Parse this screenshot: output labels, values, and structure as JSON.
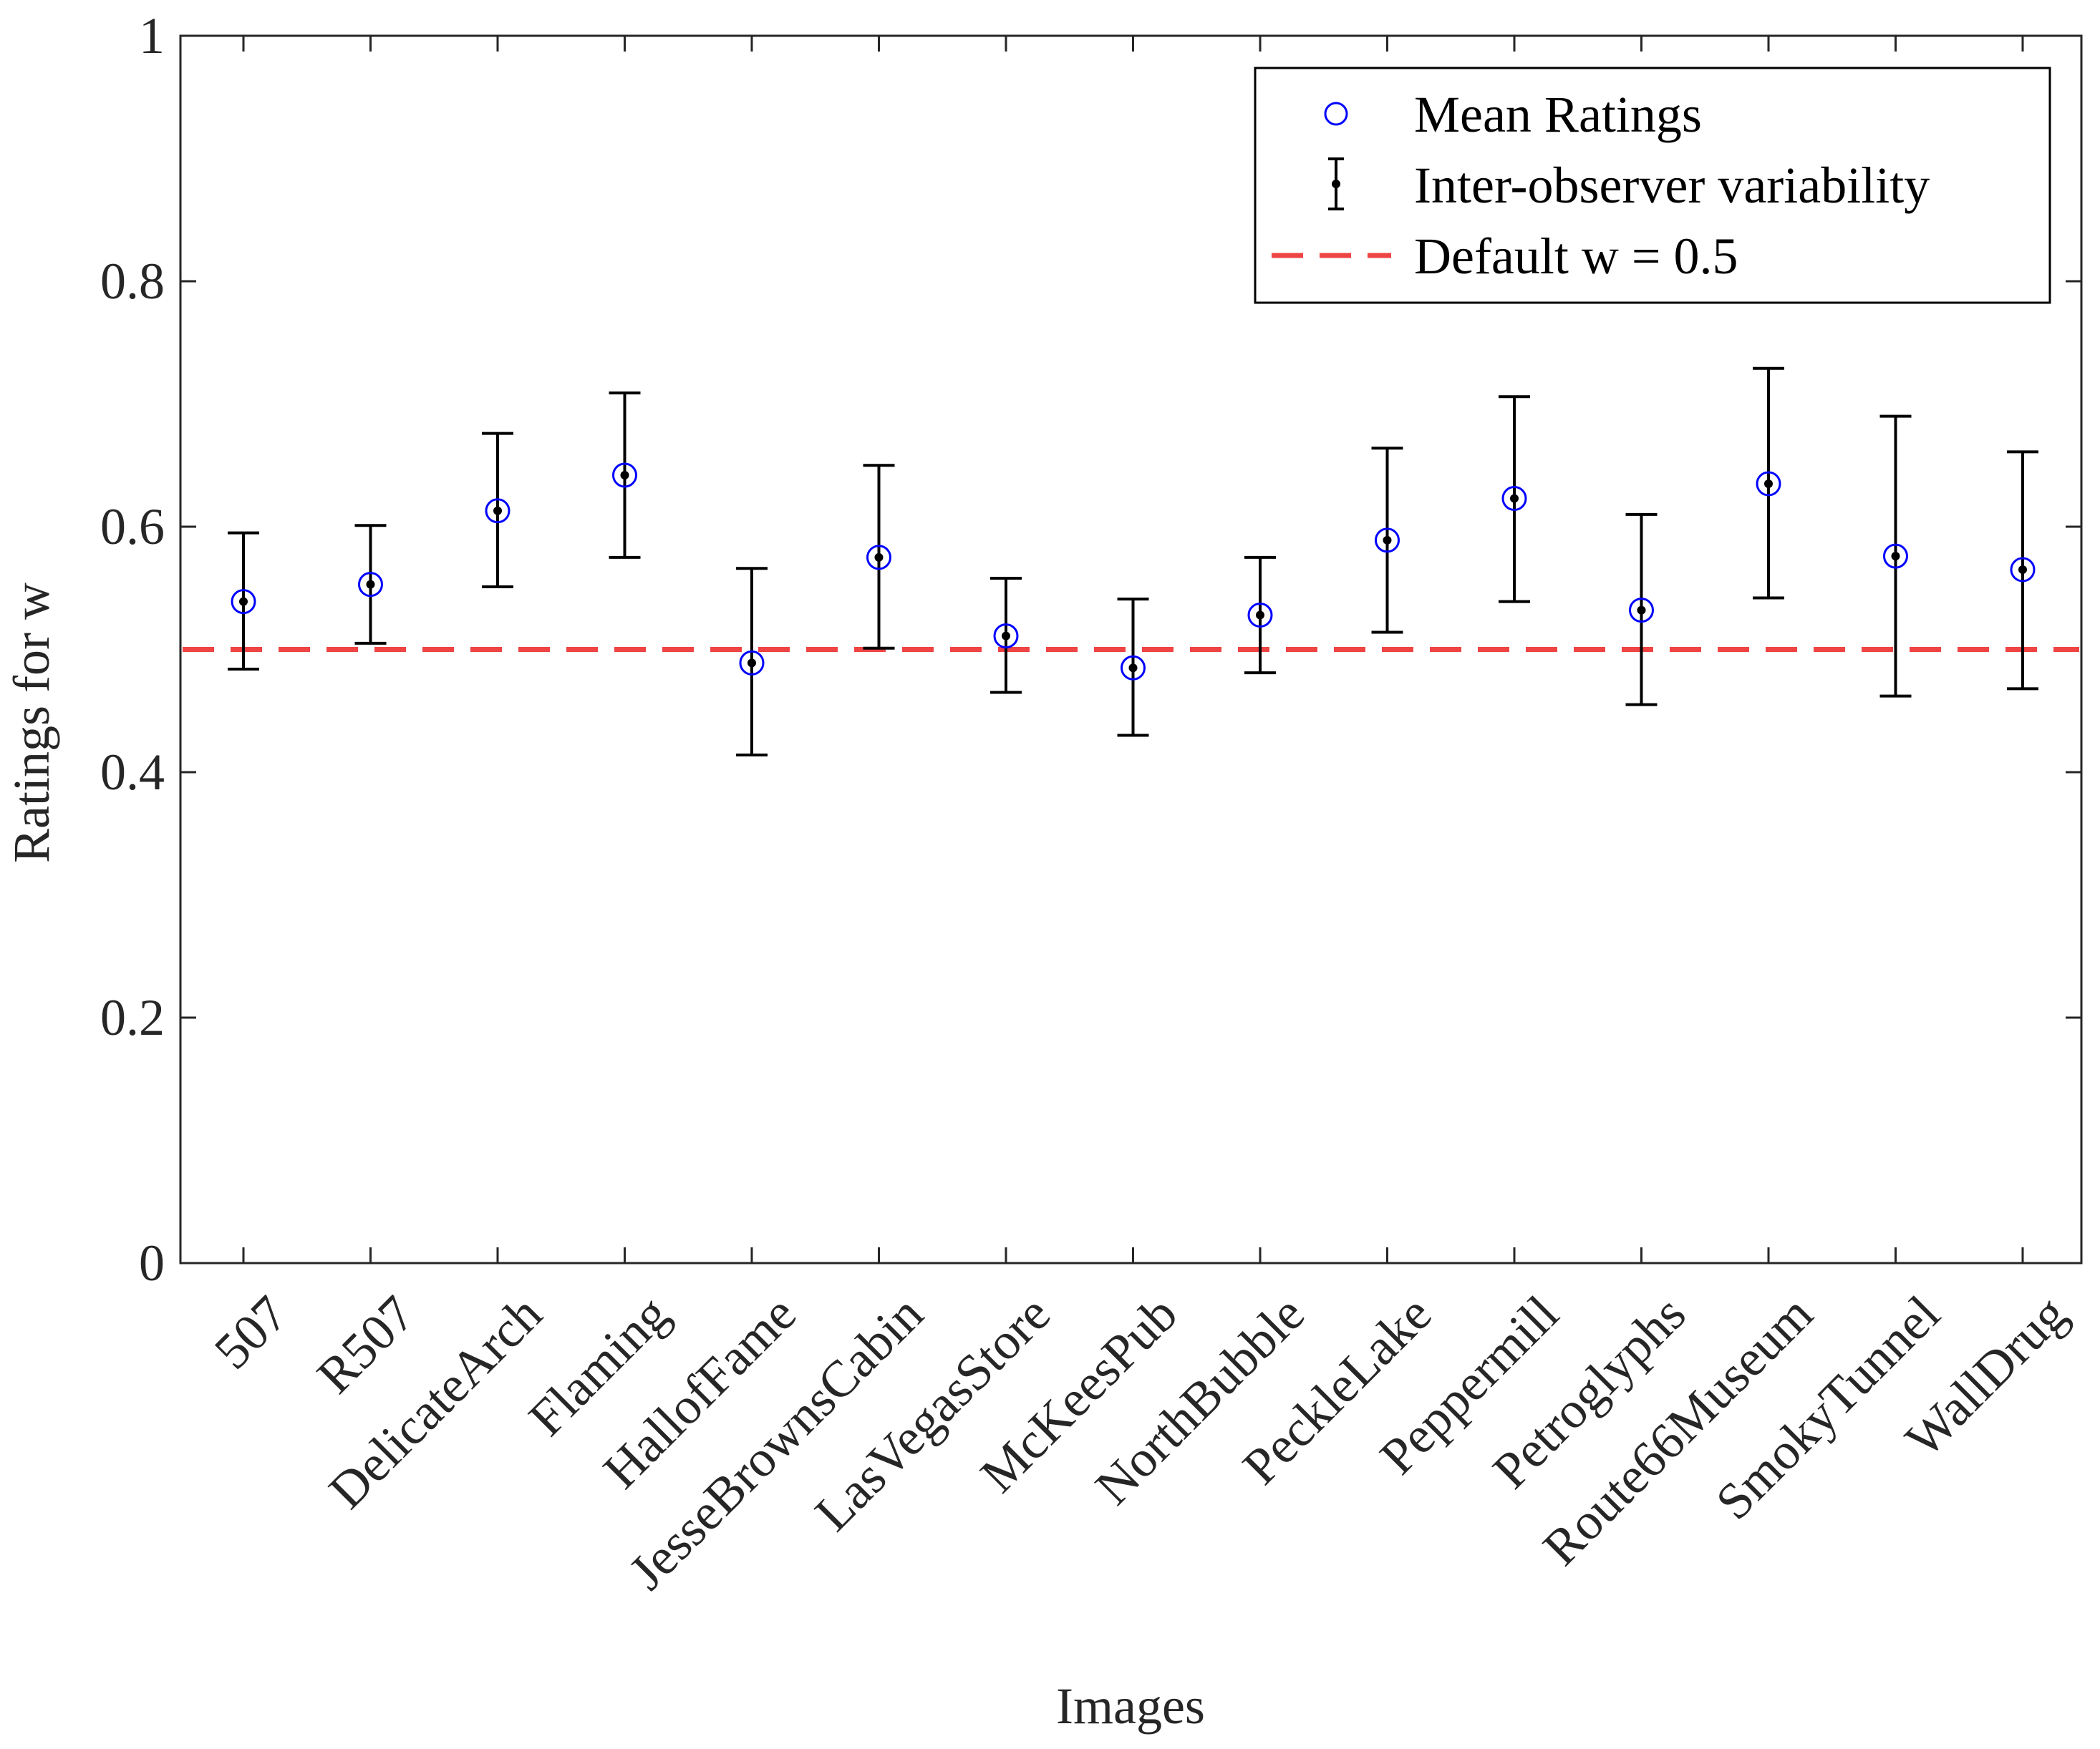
{
  "chart_data": {
    "type": "scatter",
    "title": "",
    "xlabel": "Images",
    "ylabel": "Ratings for w",
    "ylim": [
      0,
      1
    ],
    "yticks": [
      0,
      0.2,
      0.4,
      0.6,
      0.8,
      1
    ],
    "ytick_labels": [
      "0",
      "0.2",
      "0.4",
      "0.6",
      "0.8",
      "1"
    ],
    "categories": [
      "507",
      "R507",
      "DelicateArch",
      "Flaming",
      "HallofFame",
      "JesseBrownsCabin",
      "LasVegasStore",
      "McKeesPub",
      "NorthBubble",
      "PeckleLake",
      "Peppermill",
      "Petroglyphs",
      "Route66Museum",
      "SmokyTunnel",
      "WallDrug"
    ],
    "series": [
      {
        "name": "Mean Ratings",
        "marker": "circle",
        "color": "#0000ff",
        "values": [
          0.539,
          0.553,
          0.613,
          0.642,
          0.489,
          0.575,
          0.511,
          0.485,
          0.528,
          0.589,
          0.623,
          0.532,
          0.635,
          0.576,
          0.565
        ]
      },
      {
        "name": "Inter-observer variability",
        "type": "errorbar",
        "color": "#000000",
        "lower": [
          0.484,
          0.505,
          0.551,
          0.575,
          0.414,
          0.501,
          0.465,
          0.43,
          0.481,
          0.514,
          0.539,
          0.455,
          0.542,
          0.462,
          0.468
        ],
        "upper": [
          0.595,
          0.601,
          0.676,
          0.709,
          0.566,
          0.65,
          0.558,
          0.541,
          0.575,
          0.664,
          0.706,
          0.61,
          0.729,
          0.69,
          0.661
        ]
      }
    ],
    "reference_line": {
      "name": "Default w = 0.5",
      "value": 0.5,
      "style": "dashed",
      "color": "#ee4444"
    },
    "legend": {
      "location": "top-right",
      "entries": [
        "Mean Ratings",
        "Inter-observer variability",
        "Default w = 0.5"
      ]
    },
    "grid": false
  }
}
